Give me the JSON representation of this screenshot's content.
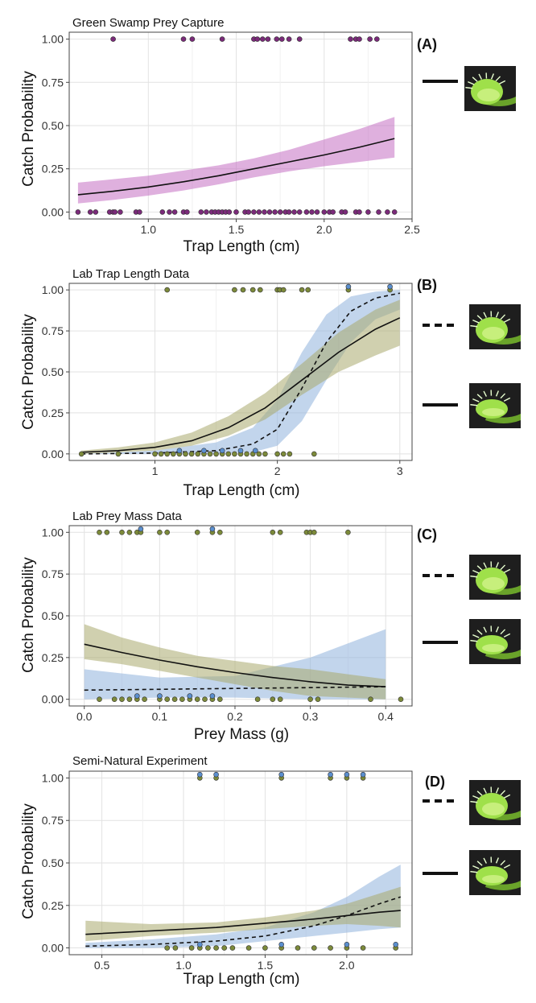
{
  "colors": {
    "panel_a_band": "#c46fc2",
    "panel_a_points": "#7b2a7a",
    "open_band": "#8fb3dd",
    "closed_band": "#a9aa6e",
    "open_points": "#5b8fcf",
    "closed_points": "#7c8a3a",
    "plant_green": "#9fe04a",
    "photo_bg": "#1e1e1e"
  },
  "chart_data": [
    {
      "panel": "A",
      "type": "scatter",
      "title": "Green Swamp Prey Capture",
      "xlabel": "Trap Length (cm)",
      "ylabel": "Catch Probability",
      "xlim": [
        0.55,
        2.5
      ],
      "ylim": [
        -0.04,
        1.04
      ],
      "xticks": [
        1.0,
        1.5,
        2.0,
        2.5
      ],
      "xtick_labels": [
        "1.0",
        "1.5",
        "2.0",
        "2.5"
      ],
      "yticks": [
        0,
        0.25,
        0.5,
        0.75,
        1
      ],
      "ytick_labels": [
        "0.00",
        "0.25",
        "0.50",
        "0.75",
        "1.00"
      ],
      "series": [
        {
          "name": "fit",
          "line": "solid",
          "color": "#111111",
          "band_color": "#c46fc2",
          "x": [
            0.6,
            0.8,
            1.0,
            1.2,
            1.4,
            1.6,
            1.8,
            2.0,
            2.2,
            2.4
          ],
          "y": [
            0.1,
            0.12,
            0.145,
            0.175,
            0.21,
            0.25,
            0.29,
            0.33,
            0.375,
            0.425
          ],
          "lower": [
            0.05,
            0.07,
            0.095,
            0.125,
            0.16,
            0.2,
            0.235,
            0.265,
            0.29,
            0.315
          ],
          "upper": [
            0.17,
            0.19,
            0.21,
            0.24,
            0.27,
            0.31,
            0.36,
            0.42,
            0.48,
            0.55
          ]
        }
      ],
      "points": [
        {
          "group": "all",
          "y": 1,
          "x": [
            0.8,
            1.2,
            1.25,
            1.42,
            1.6,
            1.62,
            1.65,
            1.68,
            1.73,
            1.76,
            1.8,
            1.86,
            2.15,
            2.18,
            2.2,
            2.26,
            2.3
          ]
        },
        {
          "group": "all",
          "y": 0,
          "x": [
            0.6,
            0.67,
            0.7,
            0.78,
            0.8,
            0.81,
            0.84,
            0.93,
            0.95,
            1.08,
            1.12,
            1.15,
            1.2,
            1.22,
            1.3,
            1.33,
            1.36,
            1.38,
            1.4,
            1.42,
            1.44,
            1.46,
            1.5,
            1.55,
            1.57,
            1.6,
            1.63,
            1.66,
            1.69,
            1.72,
            1.75,
            1.78,
            1.8,
            1.83,
            1.86,
            1.9,
            1.93,
            1.96,
            2.0,
            2.03,
            2.05,
            2.1,
            2.12,
            2.18,
            2.2,
            2.25,
            2.31,
            2.36,
            2.4
          ]
        }
      ]
    },
    {
      "panel": "B",
      "type": "scatter",
      "title": "Lab Trap Length Data",
      "xlabel": "Trap Length (cm)",
      "ylabel": "Catch Probability",
      "xlim": [
        0.3,
        3.1
      ],
      "ylim": [
        -0.04,
        1.04
      ],
      "xticks": [
        1,
        2,
        3
      ],
      "xtick_labels": [
        "1",
        "2",
        "3"
      ],
      "yticks": [
        0,
        0.25,
        0.5,
        0.75,
        1
      ],
      "ytick_labels": [
        "0.00",
        "0.25",
        "0.50",
        "0.75",
        "1.00"
      ],
      "series": [
        {
          "name": "open trap",
          "line": "dashed",
          "color": "#111111",
          "band_color": "#8fb3dd",
          "x": [
            0.4,
            1.0,
            1.5,
            1.8,
            2.0,
            2.2,
            2.4,
            2.6,
            2.8,
            3.0
          ],
          "y": [
            0.0,
            0.005,
            0.02,
            0.06,
            0.15,
            0.4,
            0.68,
            0.87,
            0.95,
            0.98
          ],
          "lower": [
            0.0,
            0.0,
            0.0,
            0.01,
            0.05,
            0.2,
            0.45,
            0.68,
            0.82,
            0.88
          ],
          "upper": [
            0.0,
            0.02,
            0.07,
            0.16,
            0.33,
            0.62,
            0.85,
            0.96,
            0.99,
            1.0
          ]
        },
        {
          "name": "closed trap",
          "line": "solid",
          "color": "#111111",
          "band_color": "#a9aa6e",
          "x": [
            0.4,
            0.7,
            1.0,
            1.3,
            1.6,
            1.9,
            2.2,
            2.5,
            2.8,
            3.0
          ],
          "y": [
            0.01,
            0.02,
            0.04,
            0.08,
            0.16,
            0.28,
            0.45,
            0.62,
            0.76,
            0.83
          ],
          "lower": [
            0.0,
            0.01,
            0.02,
            0.05,
            0.11,
            0.21,
            0.36,
            0.5,
            0.6,
            0.66
          ],
          "upper": [
            0.02,
            0.04,
            0.07,
            0.13,
            0.23,
            0.37,
            0.55,
            0.74,
            0.88,
            0.94
          ]
        }
      ],
      "points": [
        {
          "group": "closed",
          "y": 1,
          "x": [
            1.1,
            1.65,
            1.72,
            1.8,
            1.86,
            2.0,
            2.02,
            2.05,
            2.2,
            2.25,
            2.58,
            2.92
          ]
        },
        {
          "group": "open",
          "y": 1,
          "x": [
            2.58,
            2.92
          ]
        },
        {
          "group": "closed",
          "y": 0,
          "x": [
            0.4,
            0.7,
            1.0,
            1.05,
            1.1,
            1.15,
            1.2,
            1.25,
            1.3,
            1.35,
            1.4,
            1.45,
            1.5,
            1.55,
            1.6,
            1.65,
            1.7,
            1.75,
            1.8,
            1.85,
            1.9,
            2.0,
            2.05,
            2.1,
            2.3
          ]
        },
        {
          "group": "open",
          "y": 0,
          "x": [
            1.2,
            1.4,
            1.55,
            1.7,
            1.82
          ]
        }
      ]
    },
    {
      "panel": "C",
      "type": "scatter",
      "title": "Lab Prey Mass Data",
      "xlabel": "Prey Mass (g)",
      "ylabel": "Catch Probability",
      "xlim": [
        -0.02,
        0.435
      ],
      "ylim": [
        -0.04,
        1.04
      ],
      "xticks": [
        0.0,
        0.1,
        0.2,
        0.3,
        0.4
      ],
      "xtick_labels": [
        "0.0",
        "0.1",
        "0.2",
        "0.3",
        "0.4"
      ],
      "yticks": [
        0,
        0.25,
        0.5,
        0.75,
        1
      ],
      "ytick_labels": [
        "0.00",
        "0.25",
        "0.50",
        "0.75",
        "1.00"
      ],
      "series": [
        {
          "name": "open trap",
          "line": "dashed",
          "color": "#111111",
          "band_color": "#8fb3dd",
          "x": [
            0.0,
            0.1,
            0.2,
            0.3,
            0.4
          ],
          "y": [
            0.055,
            0.06,
            0.065,
            0.07,
            0.075
          ],
          "lower": [
            0.0,
            0.01,
            0.01,
            0.0,
            0.0
          ],
          "upper": [
            0.18,
            0.13,
            0.14,
            0.25,
            0.42
          ]
        },
        {
          "name": "closed trap",
          "line": "solid",
          "color": "#111111",
          "band_color": "#a9aa6e",
          "x": [
            0.0,
            0.05,
            0.1,
            0.15,
            0.2,
            0.25,
            0.3,
            0.35,
            0.4
          ],
          "y": [
            0.33,
            0.28,
            0.235,
            0.195,
            0.16,
            0.13,
            0.105,
            0.085,
            0.075
          ],
          "lower": [
            0.24,
            0.21,
            0.17,
            0.13,
            0.09,
            0.05,
            0.02,
            0.01,
            0.0
          ],
          "upper": [
            0.45,
            0.37,
            0.31,
            0.26,
            0.23,
            0.2,
            0.18,
            0.15,
            0.12
          ]
        }
      ],
      "points": [
        {
          "group": "closed",
          "y": 1,
          "x": [
            0.02,
            0.03,
            0.05,
            0.06,
            0.07,
            0.075,
            0.1,
            0.11,
            0.15,
            0.17,
            0.18,
            0.25,
            0.26,
            0.295,
            0.3,
            0.305,
            0.35
          ]
        },
        {
          "group": "open",
          "y": 1,
          "x": [
            0.075,
            0.17
          ]
        },
        {
          "group": "closed",
          "y": 0,
          "x": [
            0.02,
            0.04,
            0.05,
            0.06,
            0.07,
            0.08,
            0.1,
            0.11,
            0.12,
            0.13,
            0.14,
            0.15,
            0.16,
            0.17,
            0.18,
            0.23,
            0.25,
            0.26,
            0.3,
            0.31,
            0.38,
            0.42
          ]
        },
        {
          "group": "open",
          "y": 0,
          "x": [
            0.07,
            0.1,
            0.14,
            0.17
          ]
        }
      ]
    },
    {
      "panel": "D",
      "type": "scatter",
      "title": "Semi-Natural Experiment",
      "xlabel": "Trap Length (cm)",
      "ylabel": "Catch Probability",
      "xlim": [
        0.3,
        2.4
      ],
      "ylim": [
        -0.04,
        1.04
      ],
      "xticks": [
        0.5,
        1.0,
        1.5,
        2.0
      ],
      "xtick_labels": [
        "0.5",
        "1.0",
        "1.5",
        "2.0"
      ],
      "yticks": [
        0,
        0.25,
        0.5,
        0.75,
        1
      ],
      "ytick_labels": [
        "0.00",
        "0.25",
        "0.50",
        "0.75",
        "1.00"
      ],
      "series": [
        {
          "name": "open trap",
          "line": "dashed",
          "color": "#111111",
          "band_color": "#8fb3dd",
          "x": [
            0.4,
            0.8,
            1.2,
            1.5,
            1.8,
            2.0,
            2.2,
            2.33
          ],
          "y": [
            0.01,
            0.02,
            0.04,
            0.07,
            0.13,
            0.19,
            0.26,
            0.3
          ],
          "lower": [
            0.0,
            0.0,
            0.01,
            0.04,
            0.07,
            0.09,
            0.11,
            0.12
          ],
          "upper": [
            0.03,
            0.05,
            0.08,
            0.12,
            0.21,
            0.3,
            0.42,
            0.49
          ]
        },
        {
          "name": "closed trap",
          "line": "solid",
          "color": "#111111",
          "band_color": "#a9aa6e",
          "x": [
            0.4,
            0.8,
            1.2,
            1.5,
            1.8,
            2.0,
            2.2,
            2.33
          ],
          "y": [
            0.08,
            0.1,
            0.12,
            0.145,
            0.17,
            0.19,
            0.21,
            0.22
          ],
          "lower": [
            0.04,
            0.07,
            0.09,
            0.11,
            0.13,
            0.14,
            0.13,
            0.12
          ],
          "upper": [
            0.16,
            0.14,
            0.15,
            0.18,
            0.22,
            0.26,
            0.32,
            0.36
          ]
        }
      ],
      "points": [
        {
          "group": "closed",
          "y": 1,
          "x": [
            1.1,
            1.2,
            1.6,
            1.9,
            2.0,
            2.1
          ]
        },
        {
          "group": "open",
          "y": 1,
          "x": [
            1.1,
            1.2,
            1.6,
            1.9,
            2.0,
            2.1
          ]
        },
        {
          "group": "closed",
          "y": 0,
          "x": [
            0.9,
            0.95,
            1.05,
            1.1,
            1.15,
            1.2,
            1.25,
            1.3,
            1.4,
            1.5,
            1.6,
            1.7,
            1.8,
            1.9,
            2.0,
            2.1,
            2.3
          ]
        },
        {
          "group": "open",
          "y": 0,
          "x": [
            1.1,
            1.6,
            2.0,
            2.3
          ]
        }
      ]
    }
  ],
  "panel_labels": [
    "(A)",
    "(B)",
    "(C)",
    "(D)"
  ],
  "legend_items": [
    {
      "panel": "A",
      "line": "solid",
      "photo": "open-trap"
    },
    {
      "panel": "B",
      "line": "dashed",
      "photo": "open-trap"
    },
    {
      "panel": "B",
      "line": "solid",
      "photo": "closed-trap"
    },
    {
      "panel": "C",
      "line": "dashed",
      "photo": "open-trap"
    },
    {
      "panel": "C",
      "line": "solid",
      "photo": "closed-trap"
    },
    {
      "panel": "D",
      "line": "dashed",
      "photo": "open-trap"
    },
    {
      "panel": "D",
      "line": "solid",
      "photo": "closed-trap"
    }
  ]
}
